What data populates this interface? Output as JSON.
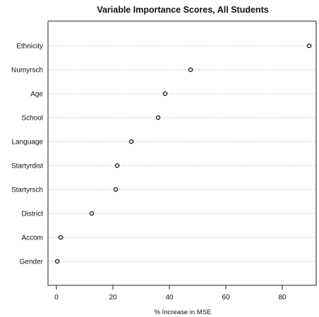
{
  "chart_data": {
    "type": "scatter",
    "style": "dot-chart",
    "title": "Variable Importance Scores, All Students",
    "xlabel": "% Increase in MSE",
    "ylabel": "",
    "xlim": [
      -3,
      92
    ],
    "xticks": [
      0,
      20,
      40,
      60,
      80
    ],
    "grid": "dotted-horizontal-guides",
    "legend": "none",
    "categories": [
      "Ethnicity",
      "Numyrsch",
      "Age",
      "School",
      "Language",
      "Startyrdist",
      "Startyrsch",
      "District",
      "Accom",
      "Gender"
    ],
    "values": [
      89.5,
      47.5,
      38.5,
      36,
      26.5,
      21.5,
      21,
      12.5,
      1.5,
      0.3
    ]
  }
}
